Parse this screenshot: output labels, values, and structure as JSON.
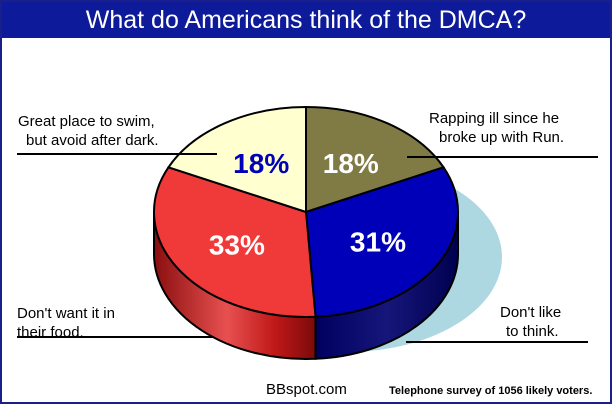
{
  "chart_data": {
    "type": "pie",
    "title": "What do Americans think of the DMCA?",
    "slices": [
      {
        "label": "Rapping ill since he broke up with Run.",
        "label_lines": [
          "Rapping ill since he",
          "broke up with Run."
        ],
        "value": 18,
        "value_label": "18%",
        "color": "#807a45"
      },
      {
        "label": "Don't like to think.",
        "label_lines": [
          "Don't like",
          "to think."
        ],
        "value": 31,
        "value_label": "31%",
        "color": "#0000b8"
      },
      {
        "label": "Don't want it in their food.",
        "label_lines": [
          "Don't want it in",
          "their food."
        ],
        "value": 33,
        "value_label": "33%",
        "color": "#f03a3a"
      },
      {
        "label": "Great place to swim, but avoid after dark.",
        "label_lines": [
          "Great place to swim,",
          "but avoid after dark."
        ],
        "value": 18,
        "value_label": "18%",
        "color": "#ffffd0"
      }
    ]
  },
  "footer": {
    "credit": "BBspot.com",
    "note": "Telephone survey of 1056 likely voters."
  }
}
